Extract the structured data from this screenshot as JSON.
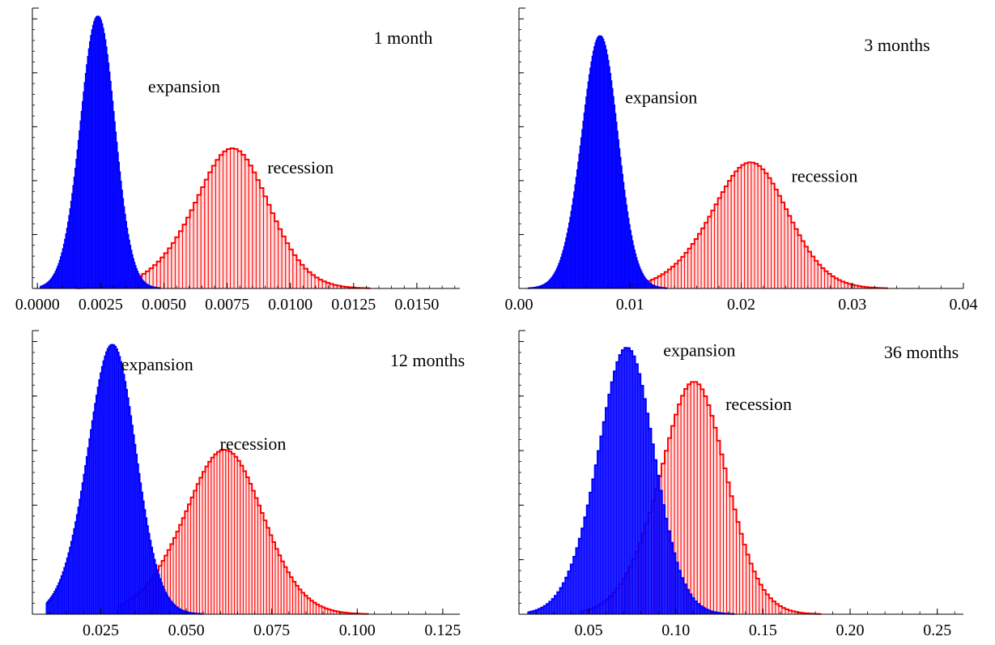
{
  "colors": {
    "expansion": "#0000ff",
    "recession": "#ff0000",
    "axis": "#000000"
  },
  "chart_data": [
    {
      "type": "bar",
      "annotation": "1 month",
      "xlim": [
        -0.0002,
        0.0167
      ],
      "xticks": [
        0.0,
        0.0025,
        0.005,
        0.0075,
        0.01,
        0.0125,
        0.015
      ],
      "xtick_labels": [
        "0.0000",
        "0.0025",
        "0.0050",
        "0.0075",
        "0.0100",
        "0.0125",
        "0.0150"
      ],
      "ylim": [
        0,
        1.0
      ],
      "yaxis_numbered": false,
      "series": [
        {
          "name": "expansion",
          "color": "#0000ff",
          "mean": 0.0022,
          "sd": 0.0007,
          "skew": 0.4,
          "peak": 0.97,
          "xmin": 0.0001,
          "xmax": 0.0075,
          "bins": 180
        },
        {
          "name": "recession",
          "color": "#ff0000",
          "mean": 0.0071,
          "sd": 0.00165,
          "skew": 0.65,
          "peak": 0.5,
          "xmin": 0.0005,
          "xmax": 0.0165,
          "bins": 110
        }
      ],
      "series_labels": [
        {
          "text": "expansion",
          "x": 0.0058,
          "y": 0.7
        },
        {
          "text": "recession",
          "x": 0.0104,
          "y": 0.41
        }
      ]
    },
    {
      "type": "bar",
      "annotation": "3 months",
      "xlim": [
        0.0,
        0.04
      ],
      "xticks": [
        0.0,
        0.01,
        0.02,
        0.03,
        0.04
      ],
      "xtick_labels": [
        "0.00",
        "0.01",
        "0.02",
        "0.03",
        "0.04"
      ],
      "ylim": [
        0,
        1.0
      ],
      "yaxis_numbered": false,
      "series": [
        {
          "name": "expansion",
          "color": "#0000ff",
          "mean": 0.0068,
          "sd": 0.0017,
          "skew": 0.45,
          "peak": 0.9,
          "xmin": 0.0008,
          "xmax": 0.0135,
          "bins": 140
        },
        {
          "name": "recession",
          "color": "#ff0000",
          "mean": 0.0195,
          "sd": 0.0038,
          "skew": 0.6,
          "peak": 0.45,
          "xmin": 0.008,
          "xmax": 0.038,
          "bins": 100
        }
      ],
      "series_labels": [
        {
          "text": "expansion",
          "x": 0.0128,
          "y": 0.66
        },
        {
          "text": "recession",
          "x": 0.0275,
          "y": 0.38
        }
      ]
    },
    {
      "type": "bar",
      "annotation": "12 months",
      "xlim": [
        0.005,
        0.13
      ],
      "xticks": [
        0.025,
        0.05,
        0.075,
        0.1,
        0.125
      ],
      "xtick_labels": [
        "0.025",
        "0.050",
        "0.075",
        "0.100",
        "0.125"
      ],
      "ylim": [
        0,
        1.0
      ],
      "yaxis_numbered": false,
      "series": [
        {
          "name": "expansion",
          "color": "#0000ff",
          "mean": 0.026,
          "sd": 0.0075,
          "skew": 0.5,
          "peak": 0.95,
          "xmin": 0.009,
          "xmax": 0.058,
          "bins": 120
        },
        {
          "name": "recession",
          "color": "#ff0000",
          "mean": 0.057,
          "sd": 0.0125,
          "skew": 0.55,
          "peak": 0.58,
          "xmin": 0.03,
          "xmax": 0.128,
          "bins": 115
        }
      ],
      "series_labels": [
        {
          "text": "expansion",
          "x": 0.0415,
          "y": 0.86
        },
        {
          "text": "recession",
          "x": 0.0695,
          "y": 0.58
        }
      ]
    },
    {
      "type": "bar",
      "annotation": "36 months",
      "xlim": [
        0.01,
        0.265
      ],
      "xticks": [
        0.05,
        0.1,
        0.15,
        0.2,
        0.25
      ],
      "xtick_labels": [
        "0.05",
        "0.10",
        "0.15",
        "0.20",
        "0.25"
      ],
      "ylim": [
        0,
        1.0
      ],
      "yaxis_numbered": false,
      "series": [
        {
          "name": "expansion",
          "color": "#0000ff",
          "mean": 0.066,
          "sd": 0.0175,
          "skew": 0.55,
          "peak": 0.94,
          "xmin": 0.015,
          "xmax": 0.2,
          "bins": 120
        },
        {
          "name": "recession",
          "color": "#ff0000",
          "mean": 0.103,
          "sd": 0.021,
          "skew": 0.6,
          "peak": 0.82,
          "xmin": 0.045,
          "xmax": 0.26,
          "bins": 115
        }
      ],
      "series_labels": [
        {
          "text": "expansion",
          "x": 0.1135,
          "y": 0.91
        },
        {
          "text": "recession",
          "x": 0.1475,
          "y": 0.72
        }
      ]
    }
  ]
}
